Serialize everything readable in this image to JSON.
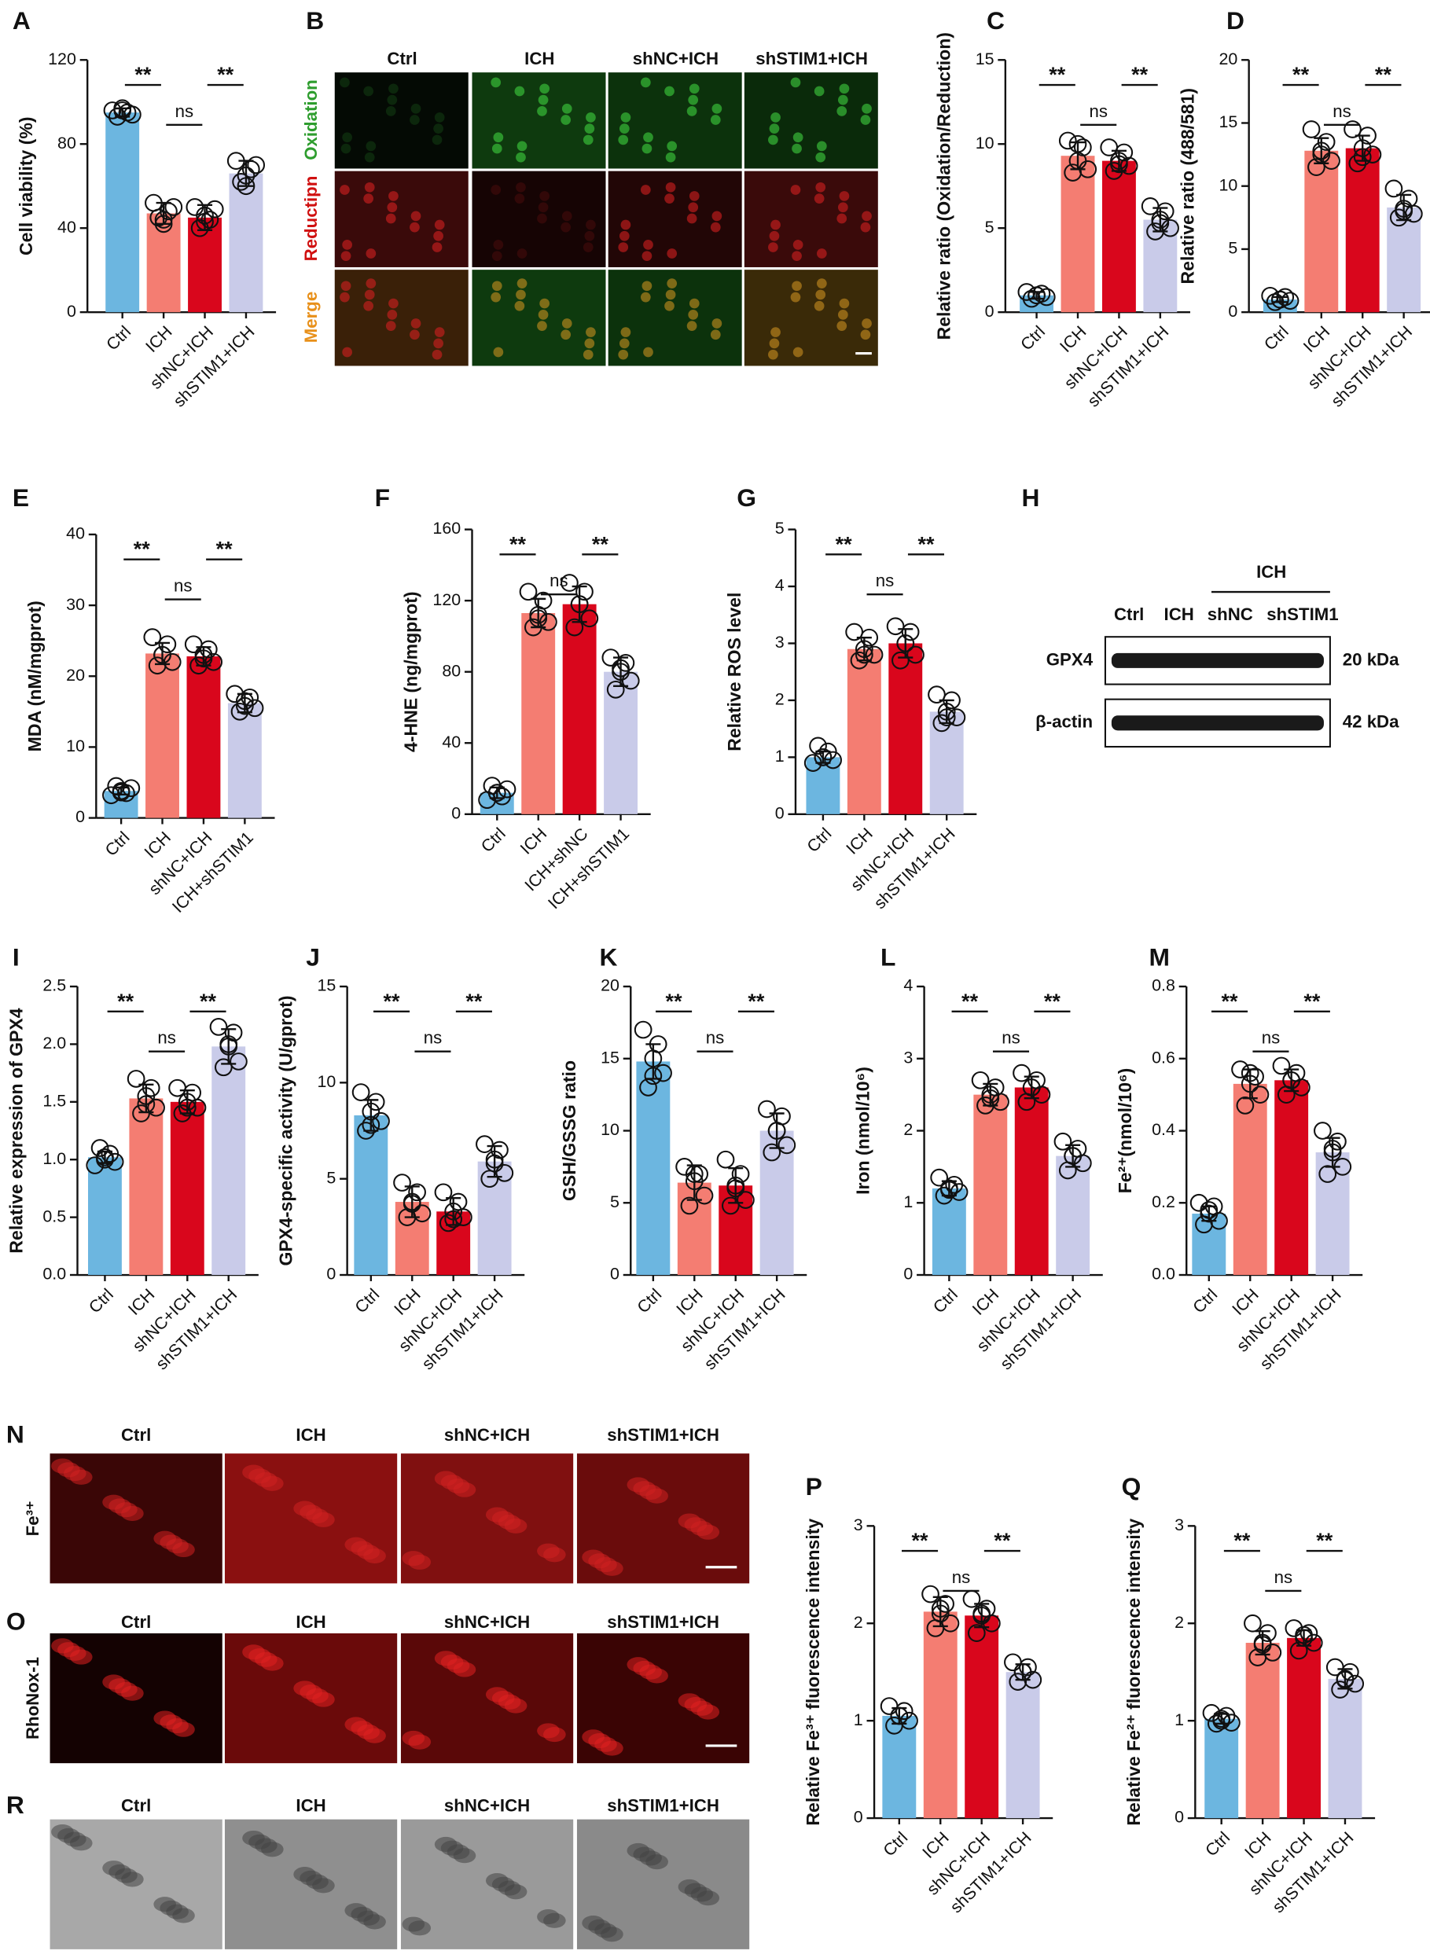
{
  "chart_data": [
    {
      "type": "bar",
      "panel": "A",
      "ylabel": "Cell viability (%)",
      "categories": [
        "Ctrl",
        "ICH",
        "shNC+ICH",
        "shSTIM1+ICH"
      ],
      "colors": [
        "#6cb6e0",
        "#f47d72",
        "#d9061c",
        "#c9cbe9"
      ],
      "values": [
        95,
        47,
        45,
        66
      ],
      "errors": [
        2,
        5,
        6,
        6
      ],
      "points": [
        [
          96,
          93,
          97,
          95,
          94,
          96
        ],
        [
          52,
          45,
          42,
          48,
          50,
          44
        ],
        [
          50,
          40,
          46,
          44,
          49,
          43
        ],
        [
          72,
          62,
          60,
          68,
          70,
          65
        ]
      ],
      "ylim": [
        0,
        120
      ],
      "yticks": [
        0,
        40,
        80,
        120
      ],
      "significance": [
        "**",
        "ns",
        "**"
      ]
    },
    {
      "type": "bar",
      "panel": "C",
      "ylabel": "Relative ratio (Oxidation/Reduction)",
      "categories": [
        "Ctrl",
        "ICH",
        "shNC+ICH",
        "shSTIM1+ICH"
      ],
      "colors": [
        "#6cb6e0",
        "#f47d72",
        "#d9061c",
        "#c9cbe9"
      ],
      "values": [
        1,
        9.3,
        9,
        5.5
      ],
      "errors": [
        0.2,
        0.8,
        0.6,
        0.7
      ],
      "points": [
        [
          1.2,
          0.8,
          1,
          1.1,
          0.9,
          1
        ],
        [
          10.2,
          8.3,
          9,
          9.8,
          8.5,
          10
        ],
        [
          9.8,
          8.4,
          9,
          9.5,
          8.7,
          8.8
        ],
        [
          6.3,
          4.8,
          5.5,
          6,
          5,
          5.3
        ]
      ],
      "ylim": [
        0,
        15
      ],
      "yticks": [
        0,
        5,
        10,
        15
      ],
      "significance": [
        "**",
        "ns",
        "**"
      ]
    },
    {
      "type": "bar",
      "panel": "D",
      "ylabel": "Relative ratio (488/581)",
      "categories": [
        "Ctrl",
        "ICH",
        "shNC+ICH",
        "shSTIM1+ICH"
      ],
      "colors": [
        "#6cb6e0",
        "#f47d72",
        "#d9061c",
        "#c9cbe9"
      ],
      "values": [
        1,
        12.8,
        13,
        8.3
      ],
      "errors": [
        0.2,
        1,
        1,
        1
      ],
      "points": [
        [
          1.3,
          0.8,
          1,
          1.2,
          0.9,
          1
        ],
        [
          14.5,
          11.5,
          12.5,
          13.5,
          12,
          12.8
        ],
        [
          14.5,
          11.8,
          13,
          14,
          12.5,
          12.3
        ],
        [
          9.8,
          7.5,
          8.2,
          9,
          7.8,
          8
        ]
      ],
      "ylim": [
        0,
        20
      ],
      "yticks": [
        0,
        5,
        10,
        15,
        20
      ],
      "significance": [
        "**",
        "ns",
        "**"
      ]
    },
    {
      "type": "bar",
      "panel": "E",
      "ylabel": "MDA (nM/mgprot)",
      "categories": [
        "Ctrl",
        "ICH",
        "shNC+ICH",
        "ICH+shSTIM1"
      ],
      "colors": [
        "#6cb6e0",
        "#f47d72",
        "#d9061c",
        "#c9cbe9"
      ],
      "values": [
        3.8,
        23.2,
        22.8,
        16.2
      ],
      "errors": [
        0.5,
        1.5,
        1.3,
        1.3
      ],
      "points": [
        [
          3.2,
          4.5,
          3.8,
          3.5,
          4.2,
          3.6
        ],
        [
          25.5,
          21.5,
          23,
          24.5,
          22,
          23
        ],
        [
          24.5,
          21.5,
          23,
          23.8,
          22,
          22.5
        ],
        [
          17.5,
          15,
          16.5,
          17,
          15.5,
          15.8
        ]
      ],
      "ylim": [
        0,
        40
      ],
      "yticks": [
        0,
        10,
        20,
        30,
        40
      ],
      "significance": [
        "**",
        "ns",
        "**"
      ]
    },
    {
      "type": "bar",
      "panel": "F",
      "ylabel": "4-HNE (ng/mgprot)",
      "categories": [
        "Ctrl",
        "ICH",
        "ICH+shNC",
        "ICH+shSTIM1"
      ],
      "colors": [
        "#6cb6e0",
        "#f47d72",
        "#d9061c",
        "#c9cbe9"
      ],
      "values": [
        12,
        113,
        118,
        80
      ],
      "errors": [
        3,
        8,
        10,
        8
      ],
      "points": [
        [
          8,
          16,
          12,
          10,
          14,
          12
        ],
        [
          125,
          105,
          110,
          120,
          108,
          112
        ],
        [
          130,
          105,
          118,
          125,
          110,
          118
        ],
        [
          88,
          70,
          80,
          85,
          75,
          82
        ]
      ],
      "ylim": [
        0,
        160
      ],
      "yticks": [
        0,
        40,
        80,
        120,
        160
      ],
      "significance": [
        "**",
        "ns",
        "**"
      ]
    },
    {
      "type": "bar",
      "panel": "G",
      "ylabel": "Relative ROS level",
      "categories": [
        "Ctrl",
        "ICH",
        "shNC+ICH",
        "shSTIM1+ICH"
      ],
      "colors": [
        "#6cb6e0",
        "#f47d72",
        "#d9061c",
        "#c9cbe9"
      ],
      "values": [
        1,
        2.9,
        3,
        1.8
      ],
      "errors": [
        0.1,
        0.2,
        0.25,
        0.2
      ],
      "points": [
        [
          0.9,
          1.2,
          1,
          1.1,
          0.95,
          1
        ],
        [
          3.2,
          2.7,
          2.9,
          3.1,
          2.8,
          2.8
        ],
        [
          3.3,
          2.7,
          3,
          3.2,
          2.8,
          3
        ],
        [
          2.1,
          1.6,
          1.8,
          2,
          1.7,
          1.7
        ]
      ],
      "ylim": [
        0,
        5
      ],
      "yticks": [
        0,
        1,
        2,
        3,
        4,
        5
      ],
      "significance": [
        "**",
        "ns",
        "**"
      ]
    },
    {
      "type": "bar",
      "panel": "I",
      "ylabel": "Relative expression of GPX4",
      "categories": [
        "Ctrl",
        "ICH",
        "shNC+ICH",
        "shSTIM1+ICH"
      ],
      "colors": [
        "#6cb6e0",
        "#f47d72",
        "#d9061c",
        "#c9cbe9"
      ],
      "values": [
        1.02,
        1.53,
        1.5,
        1.98
      ],
      "errors": [
        0.05,
        0.12,
        0.1,
        0.15
      ],
      "points": [
        [
          0.95,
          1.1,
          1,
          1.05,
          0.98,
          1.02
        ],
        [
          1.7,
          1.4,
          1.55,
          1.62,
          1.45,
          1.48
        ],
        [
          1.62,
          1.4,
          1.5,
          1.58,
          1.45,
          1.45
        ],
        [
          2.15,
          1.8,
          2,
          2.1,
          1.85,
          1.98
        ]
      ],
      "ylim": [
        0,
        2.5
      ],
      "yticks": [
        {
          "value": 0,
          "label": "0.0"
        },
        0.5,
        {
          "value": 1,
          "label": "1.0"
        },
        1.5,
        {
          "value": 2,
          "label": "2.0"
        },
        2.5
      ],
      "significance": [
        "**",
        "ns",
        "**"
      ]
    },
    {
      "type": "bar",
      "panel": "J",
      "ylabel": "GPX4-specific activity (U/gprot)",
      "categories": [
        "Ctrl",
        "ICH",
        "shNC+ICH",
        "shSTIM1+ICH"
      ],
      "colors": [
        "#6cb6e0",
        "#f47d72",
        "#d9061c",
        "#c9cbe9"
      ],
      "values": [
        8.3,
        3.8,
        3.3,
        5.9
      ],
      "errors": [
        0.8,
        0.8,
        0.7,
        0.8
      ],
      "points": [
        [
          9.5,
          7.5,
          8.5,
          9,
          8,
          7.8
        ],
        [
          4.8,
          3,
          3.8,
          4.3,
          3.2,
          3.7
        ],
        [
          4.3,
          2.7,
          3.3,
          3.8,
          3,
          2.9
        ],
        [
          6.8,
          5,
          6,
          6.5,
          5.3,
          5.8
        ]
      ],
      "ylim": [
        0,
        15
      ],
      "yticks": [
        0,
        5,
        10,
        15
      ],
      "significance": [
        "**",
        "ns",
        "**"
      ]
    },
    {
      "type": "bar",
      "panel": "K",
      "ylabel": "GSH/GSSG ratio",
      "categories": [
        "Ctrl",
        "ICH",
        "shNC+ICH",
        "shSTIM1+ICH"
      ],
      "colors": [
        "#6cb6e0",
        "#f47d72",
        "#d9061c",
        "#c9cbe9"
      ],
      "values": [
        14.8,
        6.4,
        6.2,
        10
      ],
      "errors": [
        1.2,
        1.2,
        1.2,
        1.2
      ],
      "points": [
        [
          17,
          13,
          15,
          16,
          14,
          13.8
        ],
        [
          7.5,
          4.8,
          6.5,
          7,
          5.5,
          7
        ],
        [
          8,
          4.8,
          6,
          7,
          5.2,
          6.2
        ],
        [
          11.5,
          8.5,
          10,
          11,
          9,
          10
        ]
      ],
      "ylim": [
        0,
        20
      ],
      "yticks": [
        0,
        5,
        10,
        15,
        20
      ],
      "significance": [
        "**",
        "ns",
        "**"
      ]
    },
    {
      "type": "bar",
      "panel": "L",
      "ylabel": "Iron (nmol/10⁶)",
      "categories": [
        "Ctrl",
        "ICH",
        "shNC+ICH",
        "shSTIM1+ICH"
      ],
      "colors": [
        "#6cb6e0",
        "#f47d72",
        "#d9061c",
        "#c9cbe9"
      ],
      "values": [
        1.2,
        2.5,
        2.6,
        1.65
      ],
      "errors": [
        0.1,
        0.15,
        0.15,
        0.15
      ],
      "points": [
        [
          1.35,
          1.1,
          1.2,
          1.25,
          1.15,
          1.18
        ],
        [
          2.7,
          2.35,
          2.5,
          2.6,
          2.4,
          2.45
        ],
        [
          2.8,
          2.4,
          2.6,
          2.7,
          2.5,
          2.6
        ],
        [
          1.85,
          1.45,
          1.65,
          1.75,
          1.55,
          1.65
        ]
      ],
      "ylim": [
        0,
        4
      ],
      "yticks": [
        0,
        1,
        2,
        3,
        4
      ],
      "significance": [
        "**",
        "ns",
        "**"
      ]
    },
    {
      "type": "bar",
      "panel": "M",
      "ylabel": "Fe²⁺(nmol/10⁶)",
      "categories": [
        "Ctrl",
        "ICH",
        "shNC+ICH",
        "shSTIM1+ICH"
      ],
      "colors": [
        "#6cb6e0",
        "#f47d72",
        "#d9061c",
        "#c9cbe9"
      ],
      "values": [
        0.17,
        0.53,
        0.54,
        0.34
      ],
      "errors": [
        0.02,
        0.04,
        0.03,
        0.04
      ],
      "points": [
        [
          0.2,
          0.14,
          0.17,
          0.19,
          0.15,
          0.18
        ],
        [
          0.57,
          0.47,
          0.53,
          0.55,
          0.5,
          0.56
        ],
        [
          0.58,
          0.5,
          0.54,
          0.56,
          0.52,
          0.54
        ],
        [
          0.4,
          0.28,
          0.34,
          0.37,
          0.3,
          0.35
        ]
      ],
      "ylim": [
        0,
        0.8
      ],
      "yticks": [
        {
          "value": 0,
          "label": "0.0"
        },
        0.2,
        0.4,
        0.6,
        0.8
      ],
      "significance": [
        "**",
        "ns",
        "**"
      ]
    },
    {
      "type": "bar",
      "panel": "P",
      "ylabel": "Relative Fe³⁺ fluorescence intensity",
      "categories": [
        "Ctrl",
        "ICH",
        "shNC+ICH",
        "shSTIM1+ICH"
      ],
      "colors": [
        "#6cb6e0",
        "#f47d72",
        "#d9061c",
        "#c9cbe9"
      ],
      "values": [
        1.05,
        2.12,
        2.08,
        1.5
      ],
      "errors": [
        0.08,
        0.15,
        0.12,
        0.08
      ],
      "points": [
        [
          1.15,
          0.95,
          1.05,
          1.1,
          1,
          1.05
        ],
        [
          2.3,
          1.95,
          2.1,
          2.2,
          2,
          2.15
        ],
        [
          2.25,
          1.9,
          2.08,
          2.15,
          2,
          2.1
        ],
        [
          1.6,
          1.4,
          1.5,
          1.55,
          1.42,
          1.5
        ]
      ],
      "ylim": [
        0,
        3
      ],
      "yticks": [
        0,
        1,
        2,
        3
      ],
      "significance": [
        "**",
        "ns",
        "**"
      ]
    },
    {
      "type": "bar",
      "panel": "Q",
      "ylabel": "Relative Fe²⁺ fluorescence intensity",
      "categories": [
        "Ctrl",
        "ICH",
        "shNC+ICH",
        "shSTIM1+ICH"
      ],
      "colors": [
        "#6cb6e0",
        "#f47d72",
        "#d9061c",
        "#c9cbe9"
      ],
      "values": [
        1.02,
        1.8,
        1.85,
        1.43
      ],
      "errors": [
        0.05,
        0.12,
        0.08,
        0.1
      ],
      "points": [
        [
          1.08,
          0.97,
          1,
          1.05,
          0.98,
          1.02
        ],
        [
          2,
          1.65,
          1.8,
          1.9,
          1.7,
          1.78
        ],
        [
          1.95,
          1.72,
          1.85,
          1.9,
          1.8,
          1.88
        ],
        [
          1.55,
          1.32,
          1.43,
          1.5,
          1.38,
          1.42
        ]
      ],
      "ylim": [
        0,
        3
      ],
      "yticks": [
        0,
        1,
        2,
        3
      ],
      "significance": [
        "**",
        "ns",
        "**"
      ]
    }
  ],
  "image_panels": {
    "B": {
      "panel": "B",
      "columns": [
        "Ctrl",
        "ICH",
        "shNC+ICH",
        "shSTIM1+ICH"
      ],
      "rows": [
        "Oxidation",
        "Reductipn",
        "Merge"
      ]
    },
    "H": {
      "panel": "H",
      "group": "ICH",
      "lanes": [
        "Ctrl",
        "ICH",
        "shNC",
        "shSTIM1"
      ],
      "bands": [
        {
          "name": "GPX4",
          "size": "20 kDa"
        },
        {
          "name": "β-actin",
          "size": "42 kDa"
        }
      ]
    },
    "N": {
      "panel": "N",
      "columns": [
        "Ctrl",
        "ICH",
        "shNC+ICH",
        "shSTIM1+ICH"
      ],
      "row": "Fe³⁺"
    },
    "O": {
      "panel": "O",
      "columns": [
        "Ctrl",
        "ICH",
        "shNC+ICH",
        "shSTIM1+ICH"
      ],
      "row": "RhoNox-1"
    },
    "R": {
      "panel": "R",
      "columns": [
        "Ctrl",
        "ICH",
        "shNC+ICH",
        "shSTIM1+ICH"
      ]
    }
  }
}
